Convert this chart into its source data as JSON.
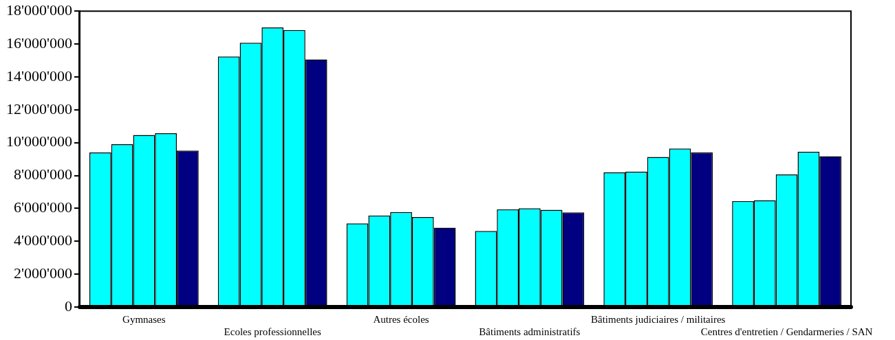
{
  "chart_data": {
    "type": "bar",
    "categories": [
      "Gymnases",
      "Ecoles professionnelles",
      "Autres écoles",
      "Bâtiments administratifs",
      "Bâtiments judiciaires / militaires",
      "Centres d'entretien / Gendarmeries / SAN"
    ],
    "series": [
      {
        "color": "#00ffff",
        "values": [
          9400000,
          15240000,
          5090000,
          4630000,
          8190000,
          6440000
        ]
      },
      {
        "color": "#00ffff",
        "values": [
          9900000,
          16080000,
          5570000,
          5940000,
          8230000,
          6500000
        ]
      },
      {
        "color": "#00ffff",
        "values": [
          10470000,
          17010000,
          5780000,
          6010000,
          9130000,
          8060000
        ]
      },
      {
        "color": "#00ffff",
        "values": [
          10570000,
          16850000,
          5470000,
          5910000,
          9640000,
          9440000
        ]
      },
      {
        "color": "#000080",
        "values": [
          9520000,
          15060000,
          4830000,
          5760000,
          9400000,
          9170000
        ]
      }
    ],
    "ylim": [
      0,
      18000000
    ],
    "yticks": [
      {
        "value": 0,
        "label": "0"
      },
      {
        "value": 2000000,
        "label": "2'000'000"
      },
      {
        "value": 4000000,
        "label": "4'000'000"
      },
      {
        "value": 6000000,
        "label": "6'000'000"
      },
      {
        "value": 8000000,
        "label": "8'000'000"
      },
      {
        "value": 10000000,
        "label": "10'000'000"
      },
      {
        "value": 12000000,
        "label": "12'000'000"
      },
      {
        "value": 14000000,
        "label": "14'000'000"
      },
      {
        "value": 16000000,
        "label": "16'000'000"
      },
      {
        "value": 18000000,
        "label": "18'000'000"
      }
    ],
    "grid": false,
    "legend": false
  }
}
